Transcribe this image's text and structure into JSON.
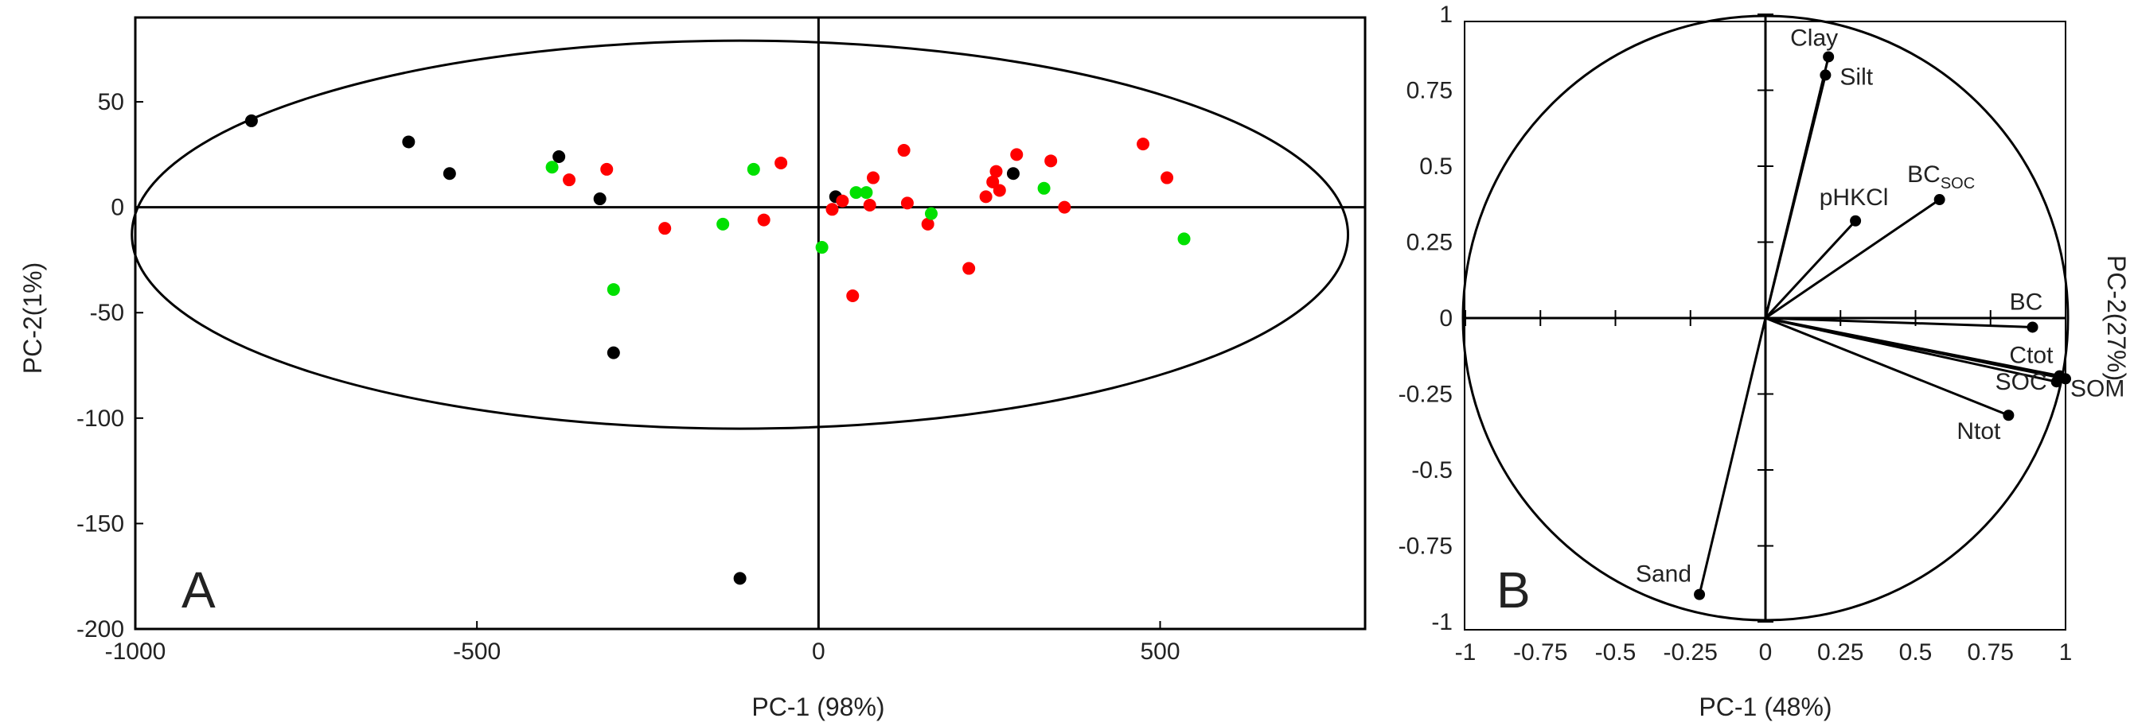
{
  "chart_data": [
    {
      "type": "scatter",
      "panel_label": "A",
      "xlabel": "PC-1 (98%)",
      "ylabel": "PC-2(1%)",
      "xlim": [
        -1000,
        800
      ],
      "ylim": [
        -200,
        90
      ],
      "xticks": [
        -1000,
        -500,
        0,
        500
      ],
      "yticks": [
        50,
        0,
        -50,
        -100,
        -150,
        -200
      ],
      "ellipse": {
        "cx": -115,
        "cy": -13,
        "rx": 890,
        "ry": 92
      },
      "series": [
        {
          "name": "black",
          "color": "#000000",
          "points": [
            [
              -830,
              41
            ],
            [
              -600,
              31
            ],
            [
              -540,
              16
            ],
            [
              -380,
              24
            ],
            [
              -320,
              4
            ],
            [
              -300,
              -69
            ],
            [
              -115,
              -176
            ],
            [
              25,
              5
            ],
            [
              285,
              16
            ]
          ]
        },
        {
          "name": "red",
          "color": "#ff0000",
          "points": [
            [
              -365,
              13
            ],
            [
              -310,
              18
            ],
            [
              -225,
              -10
            ],
            [
              -80,
              -6
            ],
            [
              -55,
              21
            ],
            [
              20,
              -1
            ],
            [
              35,
              3
            ],
            [
              75,
              1
            ],
            [
              80,
              14
            ],
            [
              125,
              27
            ],
            [
              130,
              2
            ],
            [
              160,
              -8
            ],
            [
              50,
              -42
            ],
            [
              220,
              -29
            ],
            [
              245,
              5
            ],
            [
              255,
              12
            ],
            [
              260,
              17
            ],
            [
              265,
              8
            ],
            [
              290,
              25
            ],
            [
              340,
              22
            ],
            [
              360,
              0
            ],
            [
              475,
              30
            ],
            [
              510,
              14
            ]
          ]
        },
        {
          "name": "green",
          "color": "#00e000",
          "points": [
            [
              -390,
              19
            ],
            [
              -300,
              -39
            ],
            [
              -140,
              -8
            ],
            [
              -95,
              18
            ],
            [
              5,
              -19
            ],
            [
              55,
              7
            ],
            [
              70,
              7
            ],
            [
              165,
              -3
            ],
            [
              330,
              9
            ],
            [
              535,
              -15
            ]
          ]
        }
      ]
    },
    {
      "type": "scatter",
      "panel_label": "B",
      "xlabel": "PC-1 (48%)",
      "ylabel": "PC-2(27%)",
      "xlim": [
        -1,
        1
      ],
      "ylim": [
        -1,
        1
      ],
      "xtick_labels": [
        "-1",
        "-0.75",
        "-0.5",
        "-0.25",
        "0",
        "0.25",
        "0.5",
        "0.75",
        "1"
      ],
      "xticks": [
        -1,
        -0.75,
        -0.5,
        -0.25,
        0,
        0.25,
        0.5,
        0.75,
        1
      ],
      "ytick_labels": [
        "1",
        "0.75",
        "0.5",
        "0.25",
        "0",
        "-0.25",
        "-0.5",
        "-0.75",
        "-1"
      ],
      "yticks": [
        1,
        0.75,
        0.5,
        0.25,
        0,
        -0.25,
        -0.5,
        -0.75,
        -1
      ],
      "unit_circle": true,
      "vectors": [
        {
          "name": "Clay",
          "x": 0.21,
          "y": 0.86,
          "anchor": "end"
        },
        {
          "name": "Silt",
          "x": 0.2,
          "y": 0.8,
          "anchor": "start"
        },
        {
          "name": "pHKCl",
          "x": 0.3,
          "y": 0.32,
          "anchor": "middle"
        },
        {
          "name": "BC",
          "sub": "SOC",
          "x": 0.58,
          "y": 0.39,
          "anchor": "middle"
        },
        {
          "name": "BC",
          "x": 0.89,
          "y": -0.03,
          "anchor": "middle"
        },
        {
          "name": "Ctot",
          "x": 0.98,
          "y": -0.19,
          "anchor": "end"
        },
        {
          "name": "SOM",
          "x": 1.0,
          "y": -0.2,
          "anchor": "start"
        },
        {
          "name": "SOC",
          "x": 0.97,
          "y": -0.21,
          "anchor": "end"
        },
        {
          "name": "Ntot",
          "x": 0.81,
          "y": -0.32,
          "anchor": "end"
        },
        {
          "name": "Sand",
          "x": -0.22,
          "y": -0.91,
          "anchor": "end"
        }
      ]
    }
  ]
}
